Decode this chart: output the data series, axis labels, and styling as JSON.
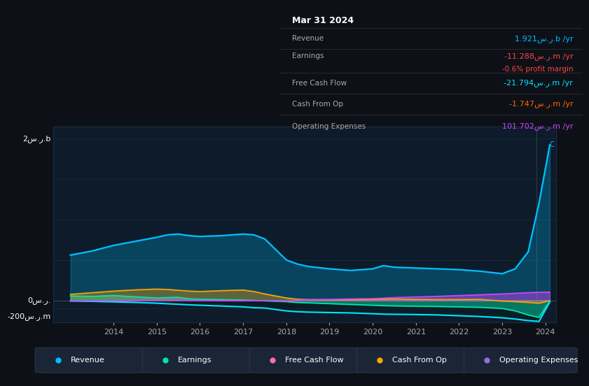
{
  "bg_color": "#0d1117",
  "plot_bg_color": "#0d1b2a",
  "grid_color": "#1e2d3d",
  "title": "Mar 31 2024",
  "table_rows": [
    {
      "label": "Revenue",
      "value": "1.921س.ر.b /yr",
      "color": "#00bfff",
      "sub": null,
      "sub_color": null
    },
    {
      "label": "Earnings",
      "value": "-11.288س.ر.m /yr",
      "color": "#ff4444",
      "sub": "-0.6% profit margin",
      "sub_color": "#ff4444"
    },
    {
      "label": "Free Cash Flow",
      "value": "-21.794س.ر.m /yr",
      "color": "#00e5ff",
      "sub": null,
      "sub_color": null
    },
    {
      "label": "Cash From Op",
      "value": "-1.747س.ر.m /yr",
      "color": "#ff6600",
      "sub": null,
      "sub_color": null
    },
    {
      "label": "Operating Expenses",
      "value": "101.702س.ر.m /yr",
      "color": "#cc44ff",
      "sub": null,
      "sub_color": null
    }
  ],
  "years": [
    2013.0,
    2013.5,
    2014.0,
    2014.5,
    2015.0,
    2015.25,
    2015.5,
    2015.75,
    2016.0,
    2016.5,
    2017.0,
    2017.25,
    2017.5,
    2018.0,
    2018.25,
    2018.5,
    2019.0,
    2019.5,
    2020.0,
    2020.25,
    2020.5,
    2021.0,
    2021.5,
    2022.0,
    2022.5,
    2023.0,
    2023.3,
    2023.6,
    2023.85,
    2024.1
  ],
  "revenue": [
    560,
    610,
    680,
    730,
    780,
    810,
    820,
    800,
    790,
    800,
    820,
    810,
    760,
    500,
    450,
    420,
    390,
    370,
    390,
    430,
    410,
    400,
    390,
    380,
    360,
    330,
    390,
    600,
    1200,
    1921
  ],
  "earnings": [
    55,
    50,
    60,
    45,
    30,
    35,
    38,
    20,
    15,
    10,
    5,
    0,
    -5,
    -15,
    -25,
    -30,
    -40,
    -50,
    -60,
    -65,
    -68,
    -72,
    -75,
    -80,
    -85,
    -100,
    -130,
    -180,
    -210,
    -11.0
  ],
  "free_cash_flow": [
    -8,
    -12,
    -18,
    -25,
    -35,
    -42,
    -48,
    -55,
    -60,
    -70,
    -80,
    -90,
    -95,
    -130,
    -140,
    -145,
    -150,
    -155,
    -165,
    -170,
    -172,
    -175,
    -180,
    -190,
    -200,
    -215,
    -230,
    -250,
    -260,
    -22.0
  ],
  "cash_from_op": [
    75,
    95,
    115,
    130,
    140,
    135,
    125,
    115,
    110,
    120,
    128,
    110,
    80,
    30,
    15,
    10,
    8,
    8,
    12,
    15,
    18,
    12,
    10,
    10,
    12,
    -8,
    -15,
    -25,
    -35,
    -2.0
  ],
  "operating_expenses": [
    -4,
    -4,
    0,
    2,
    4,
    5,
    5,
    2,
    0,
    -4,
    -4,
    -3,
    -3,
    -8,
    2,
    8,
    12,
    18,
    22,
    28,
    35,
    42,
    50,
    60,
    70,
    80,
    88,
    95,
    100,
    101.7
  ],
  "ylabel_top": "2س.ر.b",
  "ylabel_bottom": "-200س.ر.m",
  "ylabel_zero": "0س.ر.",
  "xtick_years": [
    2014,
    2015,
    2016,
    2017,
    2018,
    2019,
    2020,
    2021,
    2022,
    2023,
    2024
  ],
  "legend": [
    {
      "label": "Revenue",
      "color": "#00bfff"
    },
    {
      "label": "Earnings",
      "color": "#00e5b0"
    },
    {
      "label": "Free Cash Flow",
      "color": "#ff69b4"
    },
    {
      "label": "Cash From Op",
      "color": "#ffa500"
    },
    {
      "label": "Operating Expenses",
      "color": "#9370db"
    }
  ],
  "revenue_color": "#00bfff",
  "earnings_color": "#00e5b0",
  "fcf_color": "#00e5ff",
  "cop_color": "#ffa500",
  "opex_color": "#cc44ff"
}
